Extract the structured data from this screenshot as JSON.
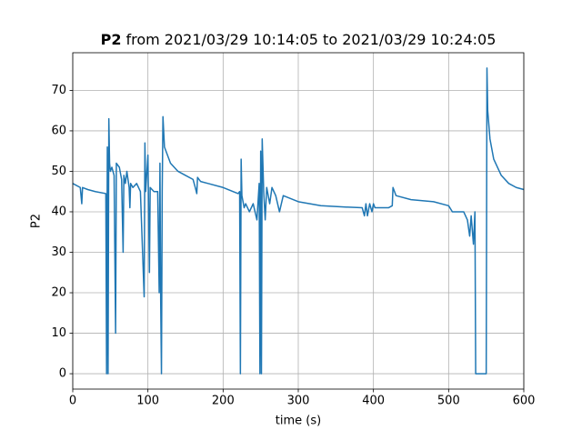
{
  "chart_data": {
    "type": "line",
    "title": {
      "bold": "P2",
      "text": "from 2021/03/29 10:14:05 to 2021/03/29 10:24:05"
    },
    "x_label": "time (s)",
    "y_label": "P2",
    "color": "#1f77b4",
    "grid": true,
    "xlim": [
      0,
      600
    ],
    "xticks": [
      0,
      100,
      200,
      300,
      400,
      500,
      600
    ],
    "ylim": [
      -3.8,
      79.3
    ],
    "yticks": [
      0,
      10,
      20,
      30,
      40,
      50,
      60,
      70
    ],
    "x": [
      0,
      10,
      12,
      13,
      20,
      30,
      44,
      45,
      46,
      47,
      48,
      49,
      50,
      52,
      55,
      57,
      58,
      62,
      65,
      67,
      68,
      70,
      72,
      75,
      76,
      77,
      80,
      85,
      90,
      95,
      96,
      97,
      100,
      102,
      103,
      108,
      113,
      115,
      116,
      117,
      118,
      119,
      120,
      122,
      130,
      140,
      150,
      160,
      163,
      165,
      166,
      170,
      180,
      200,
      220,
      222,
      223,
      224,
      225,
      228,
      230,
      235,
      240,
      245,
      248,
      249,
      250,
      251,
      252,
      254,
      256,
      258,
      262,
      265,
      270,
      275,
      280,
      300,
      330,
      360,
      385,
      388,
      390,
      392,
      395,
      398,
      400,
      402,
      420,
      425,
      426,
      430,
      450,
      480,
      500,
      505,
      510,
      520,
      525,
      528,
      530,
      533,
      535,
      536,
      550,
      551,
      552,
      555,
      560,
      570,
      580,
      590,
      600
    ],
    "values": [
      47,
      46,
      42,
      46,
      45.5,
      45,
      44.5,
      0,
      56,
      0,
      63,
      52,
      50,
      51,
      49,
      10,
      52,
      51,
      48,
      30,
      49,
      47,
      50,
      46,
      41,
      47,
      46,
      47,
      45,
      19,
      57,
      45,
      54,
      25,
      46,
      45,
      45,
      20,
      52,
      18,
      0,
      45,
      63.5,
      56,
      52,
      50,
      49,
      48,
      46,
      44.5,
      48.5,
      47.5,
      47,
      46,
      44.5,
      45,
      0,
      53,
      44,
      41,
      42,
      40,
      42,
      38,
      47,
      0,
      55,
      0,
      58,
      45,
      38,
      46,
      42,
      46,
      44,
      40,
      44,
      42.5,
      41.5,
      41.2,
      41,
      39,
      42,
      39,
      42,
      40,
      42,
      41,
      41,
      41.5,
      46,
      44,
      43,
      42.5,
      41.5,
      40,
      40,
      40,
      38,
      34,
      39,
      32,
      40,
      0,
      0,
      75.5,
      65,
      58,
      53,
      49,
      47,
      46,
      45.5
    ]
  }
}
